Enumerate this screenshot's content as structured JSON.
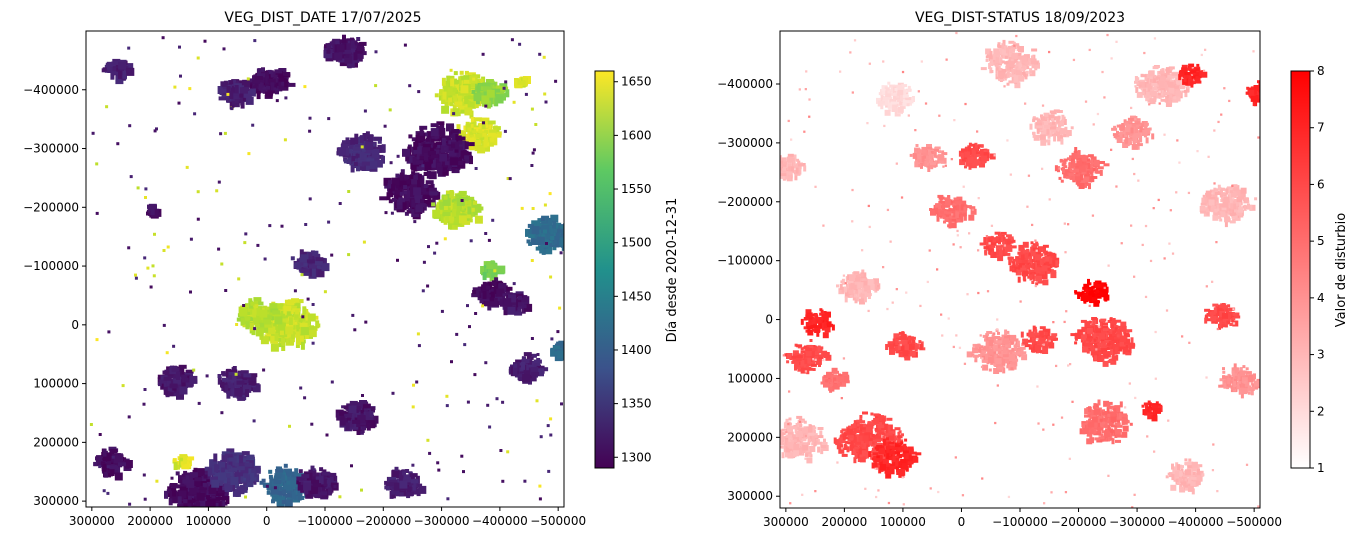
{
  "chart_data": [
    {
      "type": "heatmap",
      "title": "VEG_DIST_DATE 17/07/2025",
      "xlim": [
        310000,
        -510000
      ],
      "ylim": [
        310000,
        -500000
      ],
      "xticks": [
        300000,
        200000,
        100000,
        0,
        -100000,
        -200000,
        -300000,
        -400000,
        -500000
      ],
      "xtick_labels": [
        "300000",
        "200000",
        "100000",
        "0",
        "−100000",
        "−200000",
        "−300000",
        "−400000",
        "−500000"
      ],
      "yticks": [
        -400000,
        -300000,
        -200000,
        -100000,
        0,
        100000,
        200000,
        300000
      ],
      "ytick_labels": [
        "−400000",
        "−300000",
        "−200000",
        "−100000",
        "0",
        "100000",
        "200000",
        "300000"
      ],
      "colormap": "viridis",
      "colorbar": {
        "label": "Día desde 2020-12-31",
        "range": [
          1290,
          1660
        ],
        "ticks": [
          1300,
          1350,
          1400,
          1450,
          1500,
          1550,
          1600,
          1650
        ],
        "tick_labels": [
          "1300",
          "1350",
          "1400",
          "1450",
          "1500",
          "1550",
          "1600",
          "1650"
        ]
      },
      "regions": [
        {
          "x": 160000,
          "y": 90000,
          "r": 28000,
          "v": 1310
        },
        {
          "x": 55000,
          "y": 95000,
          "r": 30000,
          "v": 1320
        },
        {
          "x": 120000,
          "y": 280000,
          "r": 45000,
          "v": 1300
        },
        {
          "x": 60000,
          "y": 245000,
          "r": 40000,
          "v": 1340
        },
        {
          "x": -30000,
          "y": 270000,
          "r": 35000,
          "v": 1410
        },
        {
          "x": -80000,
          "y": 265000,
          "r": 30000,
          "v": 1310
        },
        {
          "x": -230000,
          "y": 265000,
          "r": 28000,
          "v": 1320
        },
        {
          "x": 270000,
          "y": 230000,
          "r": 25000,
          "v": 1300
        },
        {
          "x": 150000,
          "y": 230000,
          "r": 12000,
          "v": 1640
        },
        {
          "x": -240000,
          "y": -230000,
          "r": 40000,
          "v": 1300
        },
        {
          "x": -330000,
          "y": -400000,
          "r": 40000,
          "v": 1630
        },
        {
          "x": -360000,
          "y": -330000,
          "r": 30000,
          "v": 1640
        },
        {
          "x": -380000,
          "y": -400000,
          "r": 25000,
          "v": 1600
        },
        {
          "x": -430000,
          "y": -420000,
          "r": 10000,
          "v": 1640
        },
        {
          "x": -380000,
          "y": -100000,
          "r": 15000,
          "v": 1580
        },
        {
          "x": -30000,
          "y": -5000,
          "r": 45000,
          "v": 1630
        },
        {
          "x": 20000,
          "y": -20000,
          "r": 30000,
          "v": 1620
        },
        {
          "x": -480000,
          "y": -160000,
          "r": 35000,
          "v": 1420
        },
        {
          "x": -500000,
          "y": 40000,
          "r": 15000,
          "v": 1420
        },
        {
          "x": -290000,
          "y": -300000,
          "r": 50000,
          "v": 1300
        },
        {
          "x": 0,
          "y": -420000,
          "r": 30000,
          "v": 1300
        },
        {
          "x": -130000,
          "y": -470000,
          "r": 30000,
          "v": 1310
        },
        {
          "x": -160000,
          "y": -300000,
          "r": 35000,
          "v": 1330
        },
        {
          "x": -70000,
          "y": -110000,
          "r": 25000,
          "v": 1330
        },
        {
          "x": -380000,
          "y": -60000,
          "r": 25000,
          "v": 1300
        },
        {
          "x": -320000,
          "y": -200000,
          "r": 35000,
          "v": 1620
        },
        {
          "x": -420000,
          "y": -40000,
          "r": 20000,
          "v": 1310
        },
        {
          "x": 260000,
          "y": -440000,
          "r": 20000,
          "v": 1320
        },
        {
          "x": 60000,
          "y": -400000,
          "r": 25000,
          "v": 1320
        },
        {
          "x": -440000,
          "y": 70000,
          "r": 25000,
          "v": 1320
        },
        {
          "x": -150000,
          "y": 150000,
          "r": 30000,
          "v": 1310
        },
        {
          "x": 200000,
          "y": -200000,
          "r": 10000,
          "v": 1310
        }
      ]
    },
    {
      "type": "heatmap",
      "title": "VEG_DIST-STATUS 18/09/2023",
      "xlim": [
        310000,
        -510000
      ],
      "ylim": [
        320000,
        -490000
      ],
      "xticks": [
        300000,
        200000,
        100000,
        0,
        -100000,
        -200000,
        -300000,
        -400000,
        -500000
      ],
      "xtick_labels": [
        "300000",
        "200000",
        "100000",
        "0",
        "−100000",
        "−200000",
        "−300000",
        "−400000",
        "−500000"
      ],
      "yticks": [
        -400000,
        -300000,
        -200000,
        -100000,
        0,
        100000,
        200000,
        300000
      ],
      "ytick_labels": [
        "−400000",
        "−300000",
        "−200000",
        "−100000",
        "0",
        "100000",
        "200000",
        "300000"
      ],
      "colormap": "white-to-red",
      "colorbar": {
        "label": "Valor de disturbio",
        "range": [
          1,
          8
        ],
        "ticks": [
          1,
          2,
          3,
          4,
          5,
          6,
          7,
          8
        ],
        "tick_labels": [
          "1",
          "2",
          "3",
          "4",
          "5",
          "6",
          "7",
          "8"
        ]
      },
      "regions": [
        {
          "x": 250000,
          "y": 0,
          "r": 25000,
          "v": 7
        },
        {
          "x": 270000,
          "y": 60000,
          "r": 30000,
          "v": 6
        },
        {
          "x": 100000,
          "y": 40000,
          "r": 25000,
          "v": 6
        },
        {
          "x": 160000,
          "y": 200000,
          "r": 50000,
          "v": 6
        },
        {
          "x": 120000,
          "y": 230000,
          "r": 35000,
          "v": 7
        },
        {
          "x": -240000,
          "y": 30000,
          "r": 45000,
          "v": 6
        },
        {
          "x": -220000,
          "y": -50000,
          "r": 25000,
          "v": 8
        },
        {
          "x": -120000,
          "y": -100000,
          "r": 40000,
          "v": 6
        },
        {
          "x": -60000,
          "y": 50000,
          "r": 40000,
          "v": 4
        },
        {
          "x": -240000,
          "y": 170000,
          "r": 40000,
          "v": 5
        },
        {
          "x": -320000,
          "y": 150000,
          "r": 15000,
          "v": 7
        },
        {
          "x": 60000,
          "y": -280000,
          "r": 25000,
          "v": 4
        },
        {
          "x": -20000,
          "y": -280000,
          "r": 25000,
          "v": 6
        },
        {
          "x": 20000,
          "y": -190000,
          "r": 30000,
          "v": 5
        },
        {
          "x": -200000,
          "y": -260000,
          "r": 35000,
          "v": 5
        },
        {
          "x": -290000,
          "y": -320000,
          "r": 30000,
          "v": 4
        },
        {
          "x": -340000,
          "y": -400000,
          "r": 40000,
          "v": 3
        },
        {
          "x": -390000,
          "y": -420000,
          "r": 20000,
          "v": 7
        },
        {
          "x": -500000,
          "y": -390000,
          "r": 20000,
          "v": 7
        },
        {
          "x": -450000,
          "y": -200000,
          "r": 40000,
          "v": 3
        },
        {
          "x": -440000,
          "y": -10000,
          "r": 25000,
          "v": 6
        },
        {
          "x": -470000,
          "y": 100000,
          "r": 30000,
          "v": 4
        },
        {
          "x": 280000,
          "y": 200000,
          "r": 40000,
          "v": 3
        },
        {
          "x": -80000,
          "y": -440000,
          "r": 40000,
          "v": 3
        },
        {
          "x": 120000,
          "y": -380000,
          "r": 30000,
          "v": 2
        },
        {
          "x": -380000,
          "y": 260000,
          "r": 30000,
          "v": 3
        },
        {
          "x": -130000,
          "y": 30000,
          "r": 25000,
          "v": 6
        },
        {
          "x": -60000,
          "y": -130000,
          "r": 25000,
          "v": 6
        },
        {
          "x": 180000,
          "y": -60000,
          "r": 30000,
          "v": 3
        },
        {
          "x": 300000,
          "y": -260000,
          "r": 25000,
          "v": 3
        },
        {
          "x": -150000,
          "y": -330000,
          "r": 30000,
          "v": 3
        },
        {
          "x": 220000,
          "y": 100000,
          "r": 20000,
          "v": 5
        }
      ]
    }
  ]
}
